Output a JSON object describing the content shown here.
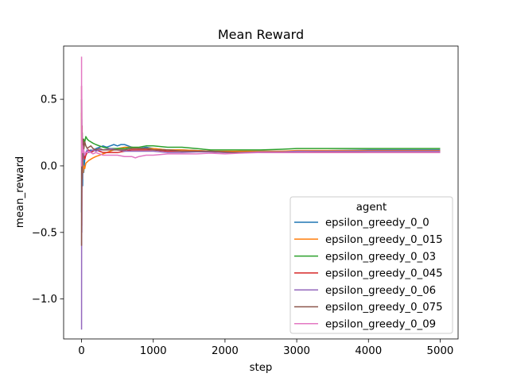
{
  "chart_data": {
    "type": "line",
    "title": "Mean Reward",
    "xlabel": "step",
    "ylabel": "mean_reward",
    "xlim": [
      -250,
      5250
    ],
    "ylim": [
      -1.3,
      0.9
    ],
    "xticks": [
      0,
      1000,
      2000,
      3000,
      4000,
      5000
    ],
    "xtick_labels": [
      "0",
      "1000",
      "2000",
      "3000",
      "4000",
      "5000"
    ],
    "yticks": [
      0.5,
      0.0,
      -0.5,
      -1.0
    ],
    "ytick_labels": [
      "0.5",
      "0.0",
      "−0.5",
      "−1.0"
    ],
    "grid": false,
    "legend": {
      "title": "agent",
      "placement": "lower-right"
    },
    "series": [
      {
        "name": "epsilon_greedy_0_0",
        "color": "#1f77b4",
        "x": [
          0,
          3,
          6,
          10,
          15,
          22,
          30,
          45,
          60,
          80,
          100,
          130,
          160,
          200,
          250,
          300,
          350,
          400,
          450,
          500,
          550,
          600,
          650,
          700,
          800,
          900,
          1000,
          1200,
          1400,
          1600,
          1800,
          2000,
          2200,
          2500,
          2800,
          3000,
          3500,
          4000,
          4500,
          5000
        ],
        "y": [
          -0.35,
          0.35,
          -0.1,
          0.2,
          -0.15,
          0.15,
          -0.05,
          0.05,
          0.1,
          0.12,
          0.1,
          0.12,
          0.11,
          0.13,
          0.14,
          0.15,
          0.14,
          0.15,
          0.16,
          0.15,
          0.16,
          0.16,
          0.15,
          0.14,
          0.13,
          0.14,
          0.13,
          0.12,
          0.12,
          0.115,
          0.11,
          0.105,
          0.11,
          0.11,
          0.11,
          0.11,
          0.115,
          0.12,
          0.12,
          0.12
        ]
      },
      {
        "name": "epsilon_greedy_0_015",
        "color": "#ff7f0e",
        "x": [
          0,
          3,
          6,
          10,
          15,
          22,
          30,
          45,
          60,
          80,
          100,
          130,
          160,
          200,
          250,
          300,
          350,
          400,
          450,
          500,
          600,
          700,
          800,
          900,
          1000,
          1200,
          1400,
          1600,
          1800,
          2000,
          2200,
          2500,
          2800,
          3000,
          3500,
          4000,
          4500,
          5000
        ],
        "y": [
          0.4,
          -0.3,
          0.25,
          -0.1,
          0.1,
          -0.05,
          0.0,
          -0.02,
          0.02,
          0.03,
          0.04,
          0.05,
          0.06,
          0.07,
          0.08,
          0.09,
          0.1,
          0.11,
          0.12,
          0.13,
          0.14,
          0.14,
          0.13,
          0.13,
          0.13,
          0.12,
          0.12,
          0.115,
          0.11,
          0.11,
          0.11,
          0.11,
          0.11,
          0.115,
          0.115,
          0.115,
          0.115,
          0.115
        ]
      },
      {
        "name": "epsilon_greedy_0_03",
        "color": "#2ca02c",
        "x": [
          0,
          3,
          6,
          10,
          15,
          22,
          30,
          45,
          60,
          80,
          100,
          130,
          160,
          200,
          250,
          300,
          400,
          500,
          600,
          700,
          800,
          900,
          1000,
          1200,
          1400,
          1600,
          1800,
          2000,
          2200,
          2500,
          2800,
          3000,
          3500,
          4000,
          4500,
          5000
        ],
        "y": [
          0.5,
          -0.2,
          0.3,
          -0.05,
          0.15,
          0.1,
          0.2,
          0.18,
          0.22,
          0.2,
          0.19,
          0.18,
          0.17,
          0.16,
          0.15,
          0.14,
          0.13,
          0.13,
          0.13,
          0.14,
          0.14,
          0.15,
          0.15,
          0.14,
          0.14,
          0.13,
          0.12,
          0.12,
          0.12,
          0.12,
          0.125,
          0.13,
          0.13,
          0.13,
          0.13,
          0.13
        ]
      },
      {
        "name": "epsilon_greedy_0_045",
        "color": "#d62728",
        "x": [
          0,
          3,
          6,
          10,
          15,
          22,
          30,
          45,
          60,
          80,
          100,
          130,
          160,
          200,
          250,
          300,
          400,
          500,
          600,
          700,
          800,
          900,
          1000,
          1200,
          1400,
          1600,
          1800,
          2000,
          2200,
          2500,
          2800,
          3000,
          3500,
          4000,
          4500,
          5000
        ],
        "y": [
          0.6,
          -0.45,
          0.3,
          0.05,
          0.15,
          0.05,
          0.1,
          0.05,
          0.08,
          0.1,
          0.12,
          0.1,
          0.11,
          0.12,
          0.11,
          0.1,
          0.1,
          0.1,
          0.11,
          0.12,
          0.12,
          0.12,
          0.12,
          0.11,
          0.11,
          0.11,
          0.105,
          0.1,
          0.1,
          0.1,
          0.1,
          0.1,
          0.105,
          0.11,
          0.11,
          0.11
        ]
      },
      {
        "name": "epsilon_greedy_0_06",
        "color": "#9467bd",
        "x": [
          0,
          2,
          4,
          6,
          10,
          15,
          22,
          30,
          45,
          60,
          80,
          100,
          130,
          160,
          200,
          250,
          300,
          400,
          500,
          600,
          700,
          800,
          900,
          1000,
          1200,
          1400,
          1600,
          1800,
          2000,
          2200,
          2500,
          2800,
          3000,
          3500,
          4000,
          4500,
          5000
        ],
        "y": [
          -1.23,
          0.1,
          -0.5,
          0.2,
          -0.1,
          0.1,
          0.05,
          0.1,
          0.08,
          0.1,
          0.12,
          0.1,
          0.11,
          0.12,
          0.11,
          0.12,
          0.12,
          0.13,
          0.12,
          0.11,
          0.11,
          0.11,
          0.11,
          0.11,
          0.1,
          0.1,
          0.105,
          0.105,
          0.1,
          0.1,
          0.105,
          0.105,
          0.11,
          0.11,
          0.11,
          0.11,
          0.11
        ]
      },
      {
        "name": "epsilon_greedy_0_075",
        "color": "#8c564b",
        "x": [
          0,
          3,
          6,
          10,
          15,
          22,
          30,
          45,
          60,
          80,
          100,
          130,
          160,
          200,
          250,
          300,
          400,
          500,
          600,
          700,
          800,
          900,
          1000,
          1200,
          1400,
          1600,
          1800,
          2000,
          2200,
          2500,
          2800,
          3000,
          3500,
          4000,
          4500,
          5000
        ],
        "y": [
          -0.6,
          0.5,
          -0.1,
          0.25,
          0.05,
          0.2,
          0.12,
          0.18,
          0.15,
          0.13,
          0.14,
          0.15,
          0.13,
          0.12,
          0.13,
          0.12,
          0.12,
          0.12,
          0.12,
          0.13,
          0.13,
          0.13,
          0.12,
          0.12,
          0.11,
          0.11,
          0.11,
          0.105,
          0.1,
          0.1,
          0.1,
          0.1,
          0.1,
          0.1,
          0.1,
          0.1
        ]
      },
      {
        "name": "epsilon_greedy_0_09",
        "color": "#e377c2",
        "x": [
          0,
          1,
          2,
          4,
          6,
          10,
          15,
          22,
          30,
          45,
          60,
          80,
          100,
          130,
          160,
          200,
          250,
          300,
          400,
          500,
          600,
          700,
          750,
          800,
          900,
          1000,
          1200,
          1400,
          1600,
          1800,
          2000,
          2200,
          2500,
          2800,
          3000,
          3500,
          4000,
          4500,
          5000
        ],
        "y": [
          0.82,
          0.0,
          0.6,
          0.3,
          0.2,
          0.1,
          0.15,
          0.1,
          0.12,
          0.08,
          0.1,
          0.1,
          0.11,
          0.1,
          0.09,
          0.1,
          0.09,
          0.08,
          0.08,
          0.08,
          0.07,
          0.07,
          0.06,
          0.07,
          0.08,
          0.08,
          0.09,
          0.09,
          0.09,
          0.095,
          0.09,
          0.095,
          0.1,
          0.1,
          0.1,
          0.1,
          0.1,
          0.1,
          0.1
        ]
      }
    ]
  }
}
